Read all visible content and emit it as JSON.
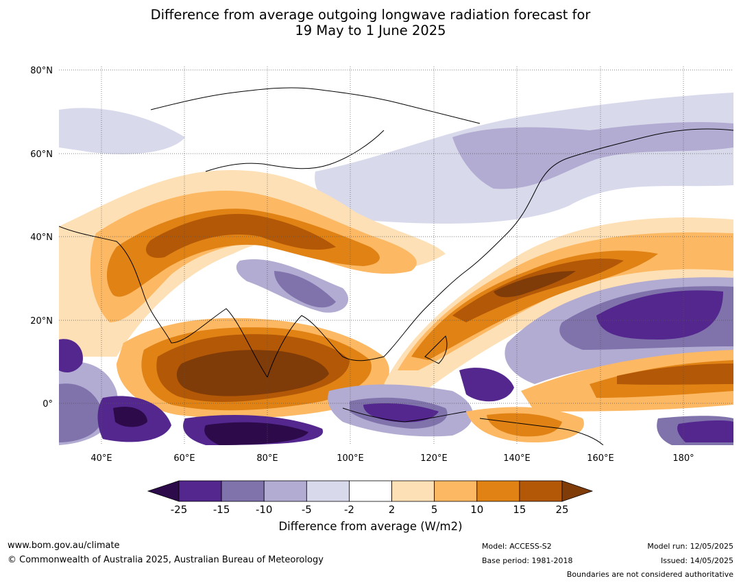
{
  "title": {
    "line1": "Difference from average outgoing longwave radiation forecast for",
    "line2": "19 May to 1 June 2025"
  },
  "map": {
    "lat_labels": [
      "80°N",
      "60°N",
      "40°N",
      "20°N",
      "0°"
    ],
    "lon_labels": [
      "40°E",
      "60°E",
      "80°E",
      "100°E",
      "120°E",
      "140°E",
      "160°E",
      "180°"
    ],
    "lat_range": [
      -10,
      80
    ],
    "lon_range": [
      30,
      190
    ]
  },
  "colorbar": {
    "ticks": [
      "-25",
      "-15",
      "-10",
      "-5",
      "-2",
      "2",
      "5",
      "10",
      "15",
      "25"
    ],
    "label": "Difference from average (W/m2)",
    "colors": [
      "#2d0a4a",
      "#54278f",
      "#8073ac",
      "#b2abd2",
      "#d8daeb",
      "#ffffff",
      "#fee0b6",
      "#fdb863",
      "#e08214",
      "#b35806",
      "#7f3b08"
    ]
  },
  "footer": {
    "website": "www.bom.gov.au/climate",
    "copyright": "© Commonwealth of Australia 2025, Australian Bureau of Meteorology",
    "model": "Model: ACCESS-S2",
    "base_period": "Base period: 1981-2018",
    "model_run": "Model run: 12/05/2025",
    "issued": "Issued: 14/05/2025",
    "boundaries_note": "Boundaries are not considered authoritative"
  }
}
